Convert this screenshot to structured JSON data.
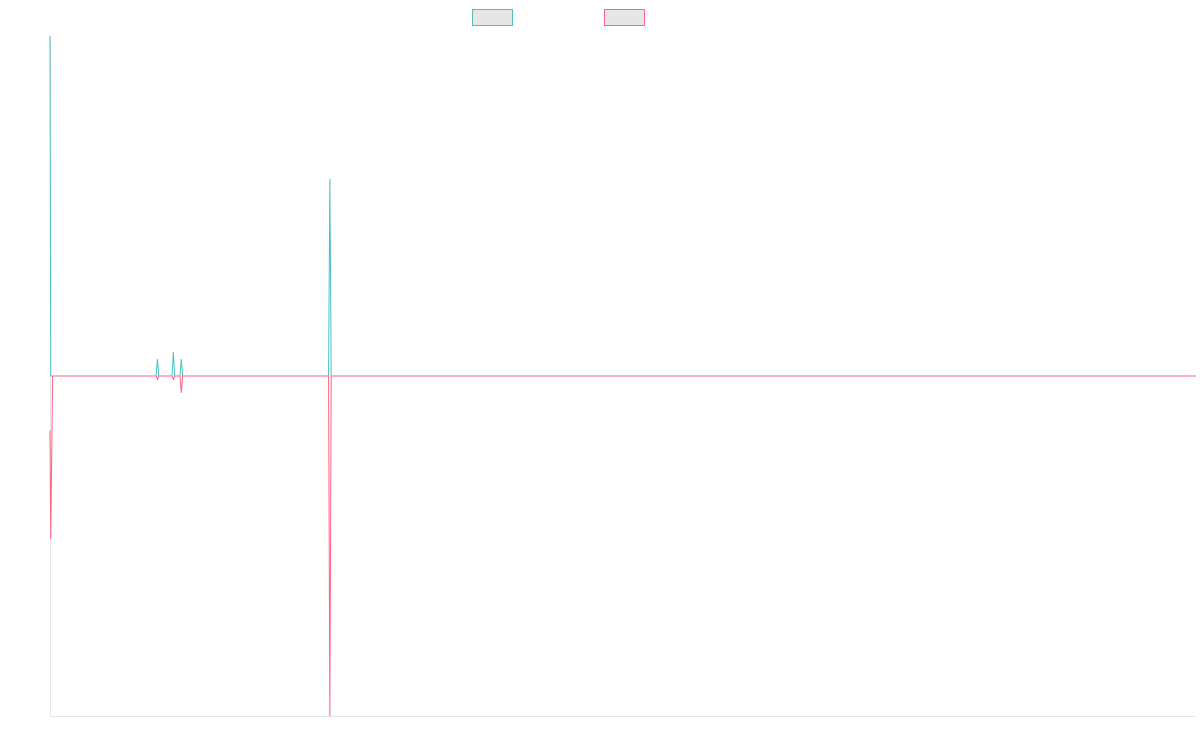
{
  "chart_data": {
    "type": "line",
    "title": "",
    "xlabel": "",
    "ylabel": "",
    "grid": false,
    "legend_position": "top-center",
    "x": [
      0,
      0.27,
      1,
      40,
      40.5,
      41,
      46,
      46.5,
      47,
      49,
      49.5,
      50,
      104,
      105,
      105.5,
      106,
      432
    ],
    "ylim": [
      -1.0,
      1.0
    ],
    "series": [
      {
        "color": "#4bc0c0",
        "fill": "#e6e6e6",
        "values": [
          1.0,
          0.0,
          0.0,
          0.0,
          0.05,
          0.0,
          0.0,
          0.07,
          0.0,
          0.0,
          0.05,
          0.0,
          0.0,
          0.0,
          0.58,
          0.0,
          0.0
        ]
      },
      {
        "color": "#ff6384",
        "fill": "#e6e6e6",
        "values": [
          -0.16,
          -0.48,
          0.0,
          0.0,
          -0.01,
          0.0,
          0.0,
          -0.01,
          0.0,
          0.0,
          -0.05,
          0.0,
          0.0,
          0.0,
          -1.0,
          0.0,
          0.0
        ]
      }
    ]
  }
}
